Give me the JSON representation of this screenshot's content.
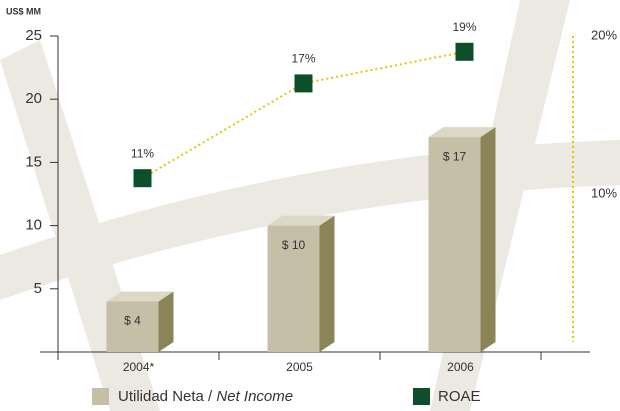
{
  "chart_data": {
    "type": "bar",
    "y_label": "US$ MM",
    "categories": [
      "2004*",
      "2005",
      "2006"
    ],
    "ylim": [
      0,
      25
    ],
    "yticks": [
      5,
      10,
      15,
      20,
      25
    ],
    "y2lim": [
      0,
      20
    ],
    "y2ticks": [
      {
        "value": 20,
        "label": "20%"
      },
      {
        "value": 10,
        "label": "10%"
      }
    ],
    "series": [
      {
        "name": "Utilidad Neta / Net Income",
        "color": "#c5bfa8",
        "side_color": "#8a8458",
        "top_color": "#dcd8c6",
        "values": [
          4,
          10,
          17
        ],
        "value_labels": [
          "$ 4",
          "$ 10",
          "$ 17"
        ]
      },
      {
        "name": "ROAE",
        "type": "line",
        "axis": "y2",
        "color": "#0d4f2a",
        "line_color": "#e3c800",
        "values": [
          11,
          17,
          19
        ],
        "value_labels": [
          "11%",
          "17%",
          "19%"
        ]
      }
    ]
  }
}
